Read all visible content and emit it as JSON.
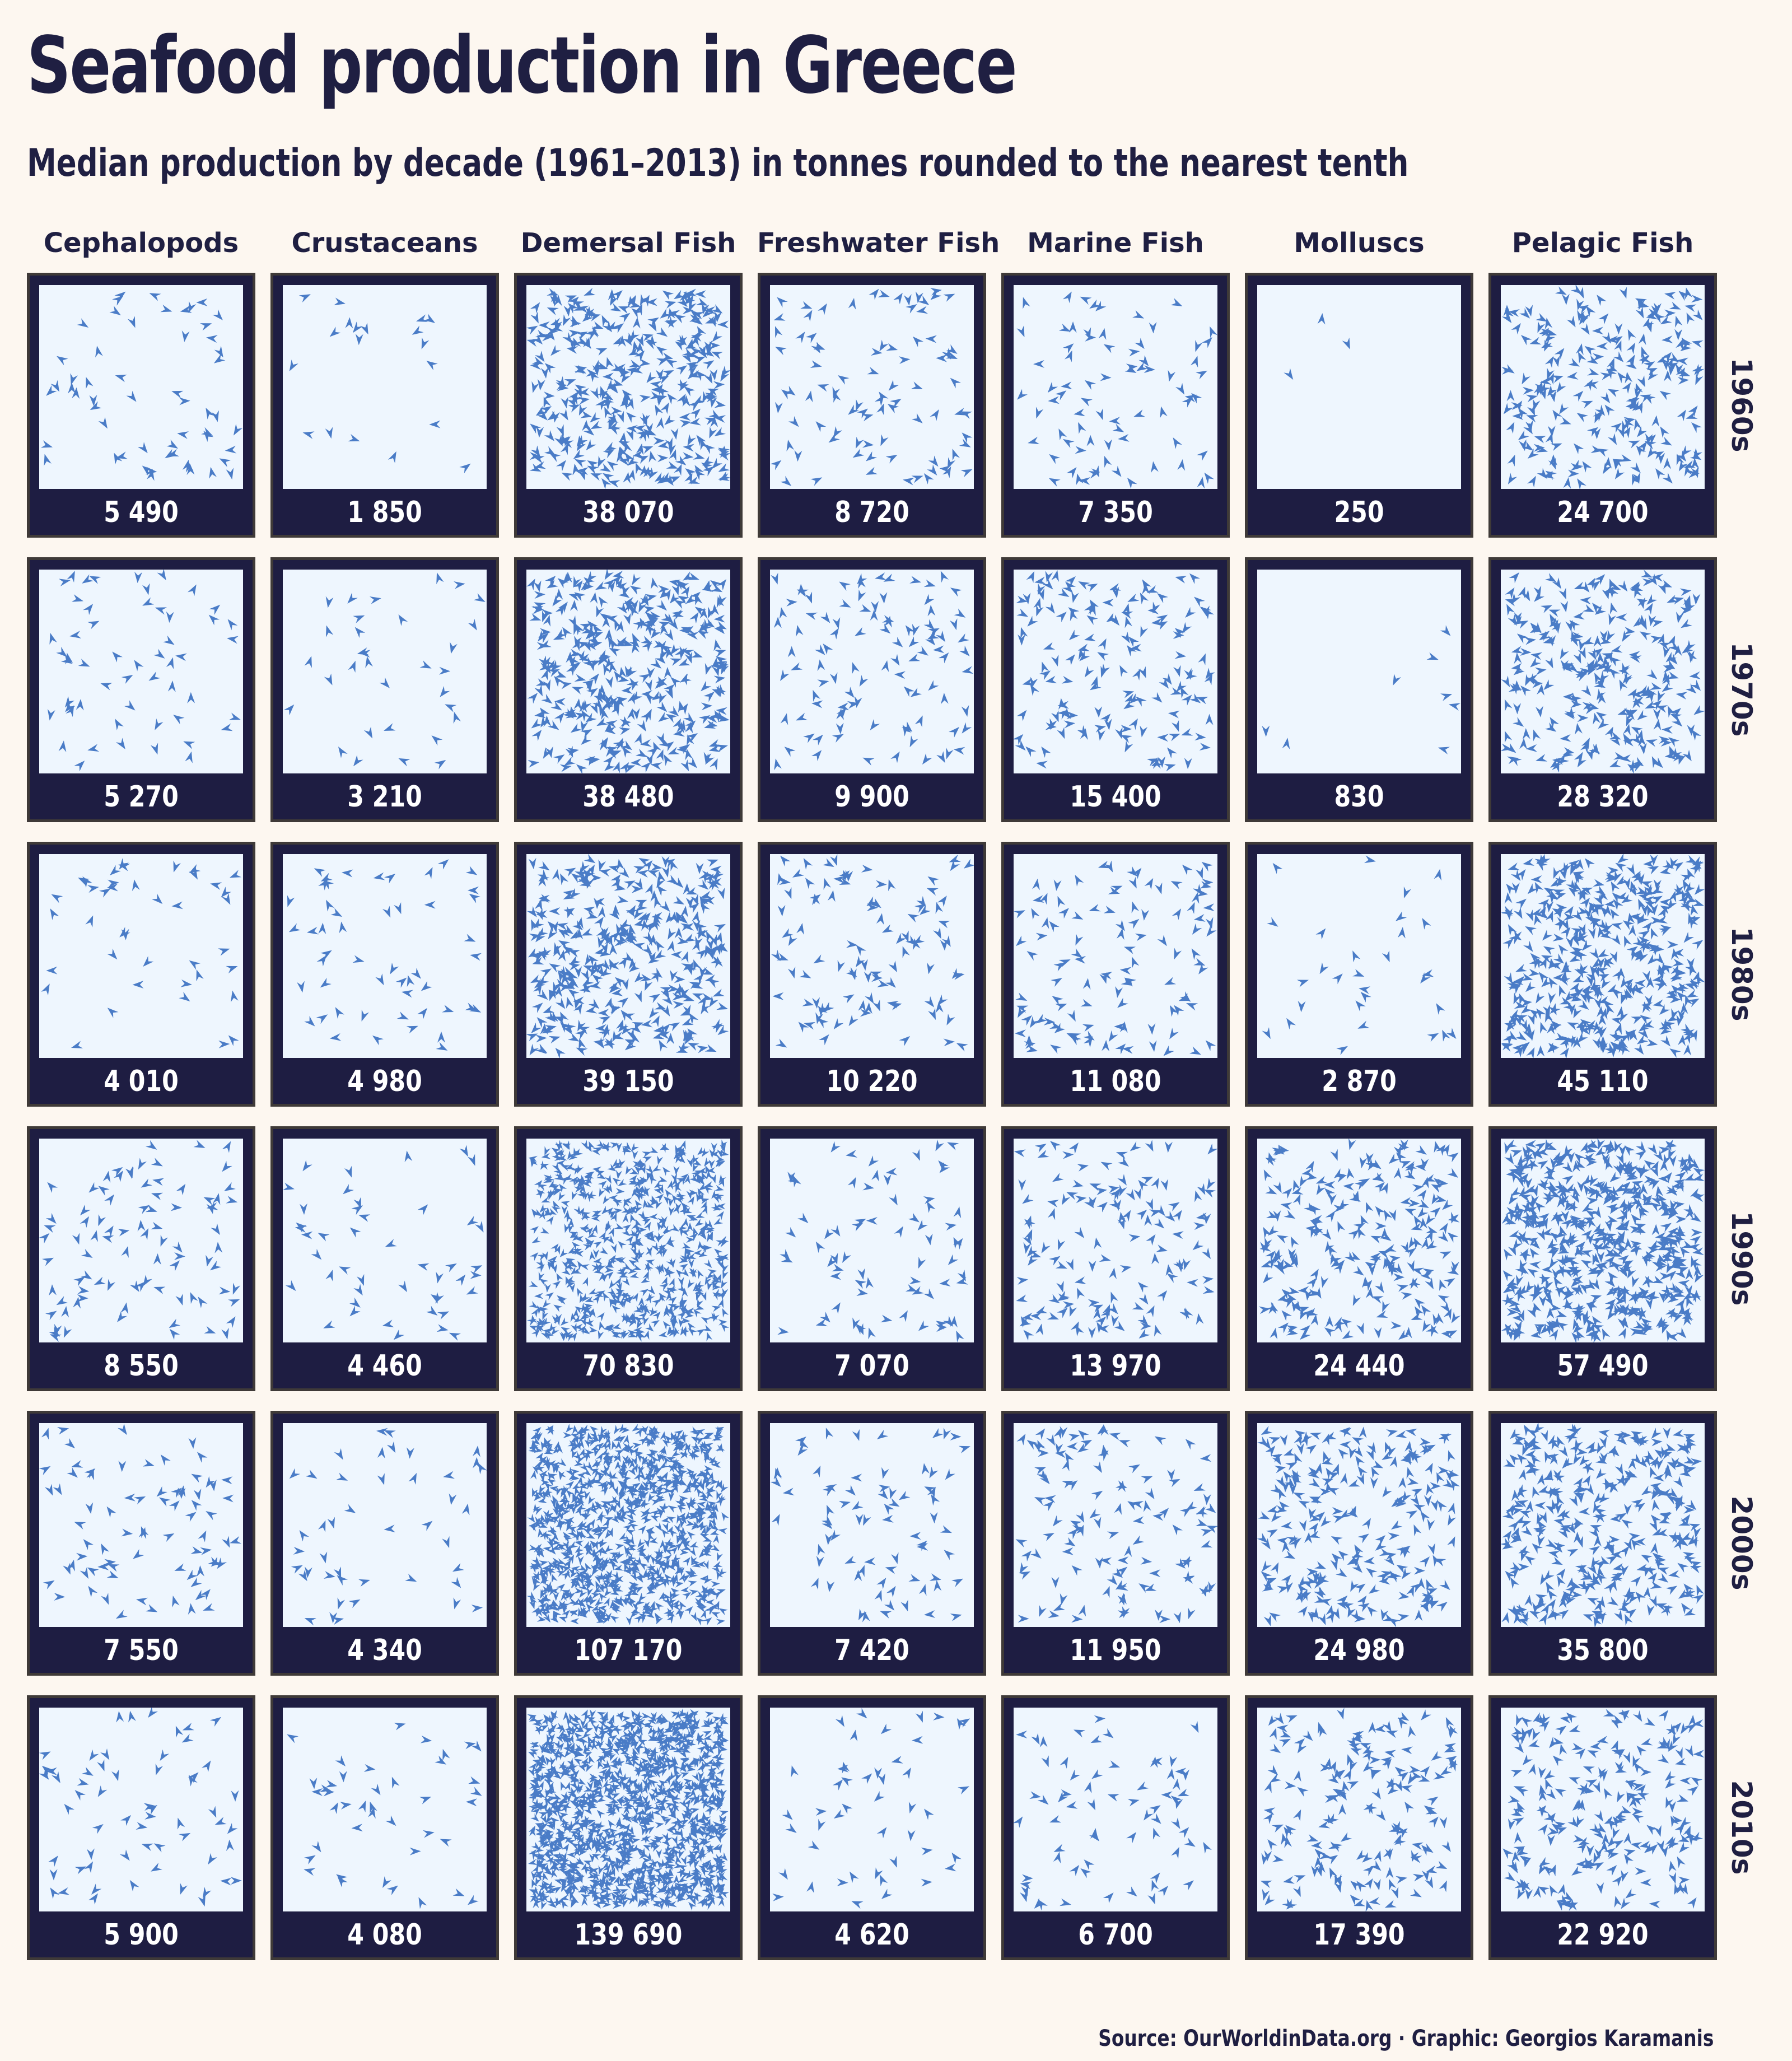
{
  "title": "Seafood production in Greece",
  "subtitle": "Median production by decade (1961–2013) in tonnes rounded to the nearest tenth",
  "source": "Source: OurWorldinData.org · Graphic: Georgios Karamanis",
  "colors": {
    "background": "#fdf7f0",
    "tile": "#1e1d42",
    "field": "#eef6fe",
    "mark": "#4a7cc7",
    "text": "#1f1f42"
  },
  "chart_data": {
    "type": "table",
    "categories": [
      "Cephalopods",
      "Crustaceans",
      "Demersal Fish",
      "Freshwater Fish",
      "Marine Fish",
      "Molluscs",
      "Pelagic Fish"
    ],
    "decades": [
      "1960s",
      "1970s",
      "1980s",
      "1990s",
      "2000s",
      "2010s"
    ],
    "values": [
      [
        5490,
        1850,
        38070,
        8720,
        7350,
        250,
        24700
      ],
      [
        5270,
        3210,
        38480,
        9900,
        15400,
        830,
        28320
      ],
      [
        4010,
        4980,
        39150,
        10220,
        11080,
        2870,
        45110
      ],
      [
        8550,
        4460,
        70830,
        7070,
        13970,
        24440,
        57490
      ],
      [
        7550,
        4340,
        107170,
        7420,
        11950,
        24980,
        35800
      ],
      [
        5900,
        4080,
        139690,
        4620,
        6700,
        17390,
        22920
      ]
    ],
    "labels": [
      [
        "5 490",
        "1 850",
        "38 070",
        "8 720",
        "7 350",
        "250",
        "24 700"
      ],
      [
        "5 270",
        "3 210",
        "38 480",
        "9 900",
        "15 400",
        "830",
        "28 320"
      ],
      [
        "4 010",
        "4 980",
        "39 150",
        "10 220",
        "11 080",
        "2 870",
        "45 110"
      ],
      [
        "8 550",
        "4 460",
        "70 830",
        "7 070",
        "13 970",
        "24 440",
        "57 490"
      ],
      [
        "7 550",
        "4 340",
        "107 170",
        "7 420",
        "11 950",
        "24 980",
        "35 800"
      ],
      [
        "5 900",
        "4 080",
        "139 690",
        "4 620",
        "6 700",
        "17 390",
        "22 920"
      ]
    ],
    "tonnes_per_mark": 100,
    "mark_shape": "fish-triangle"
  }
}
